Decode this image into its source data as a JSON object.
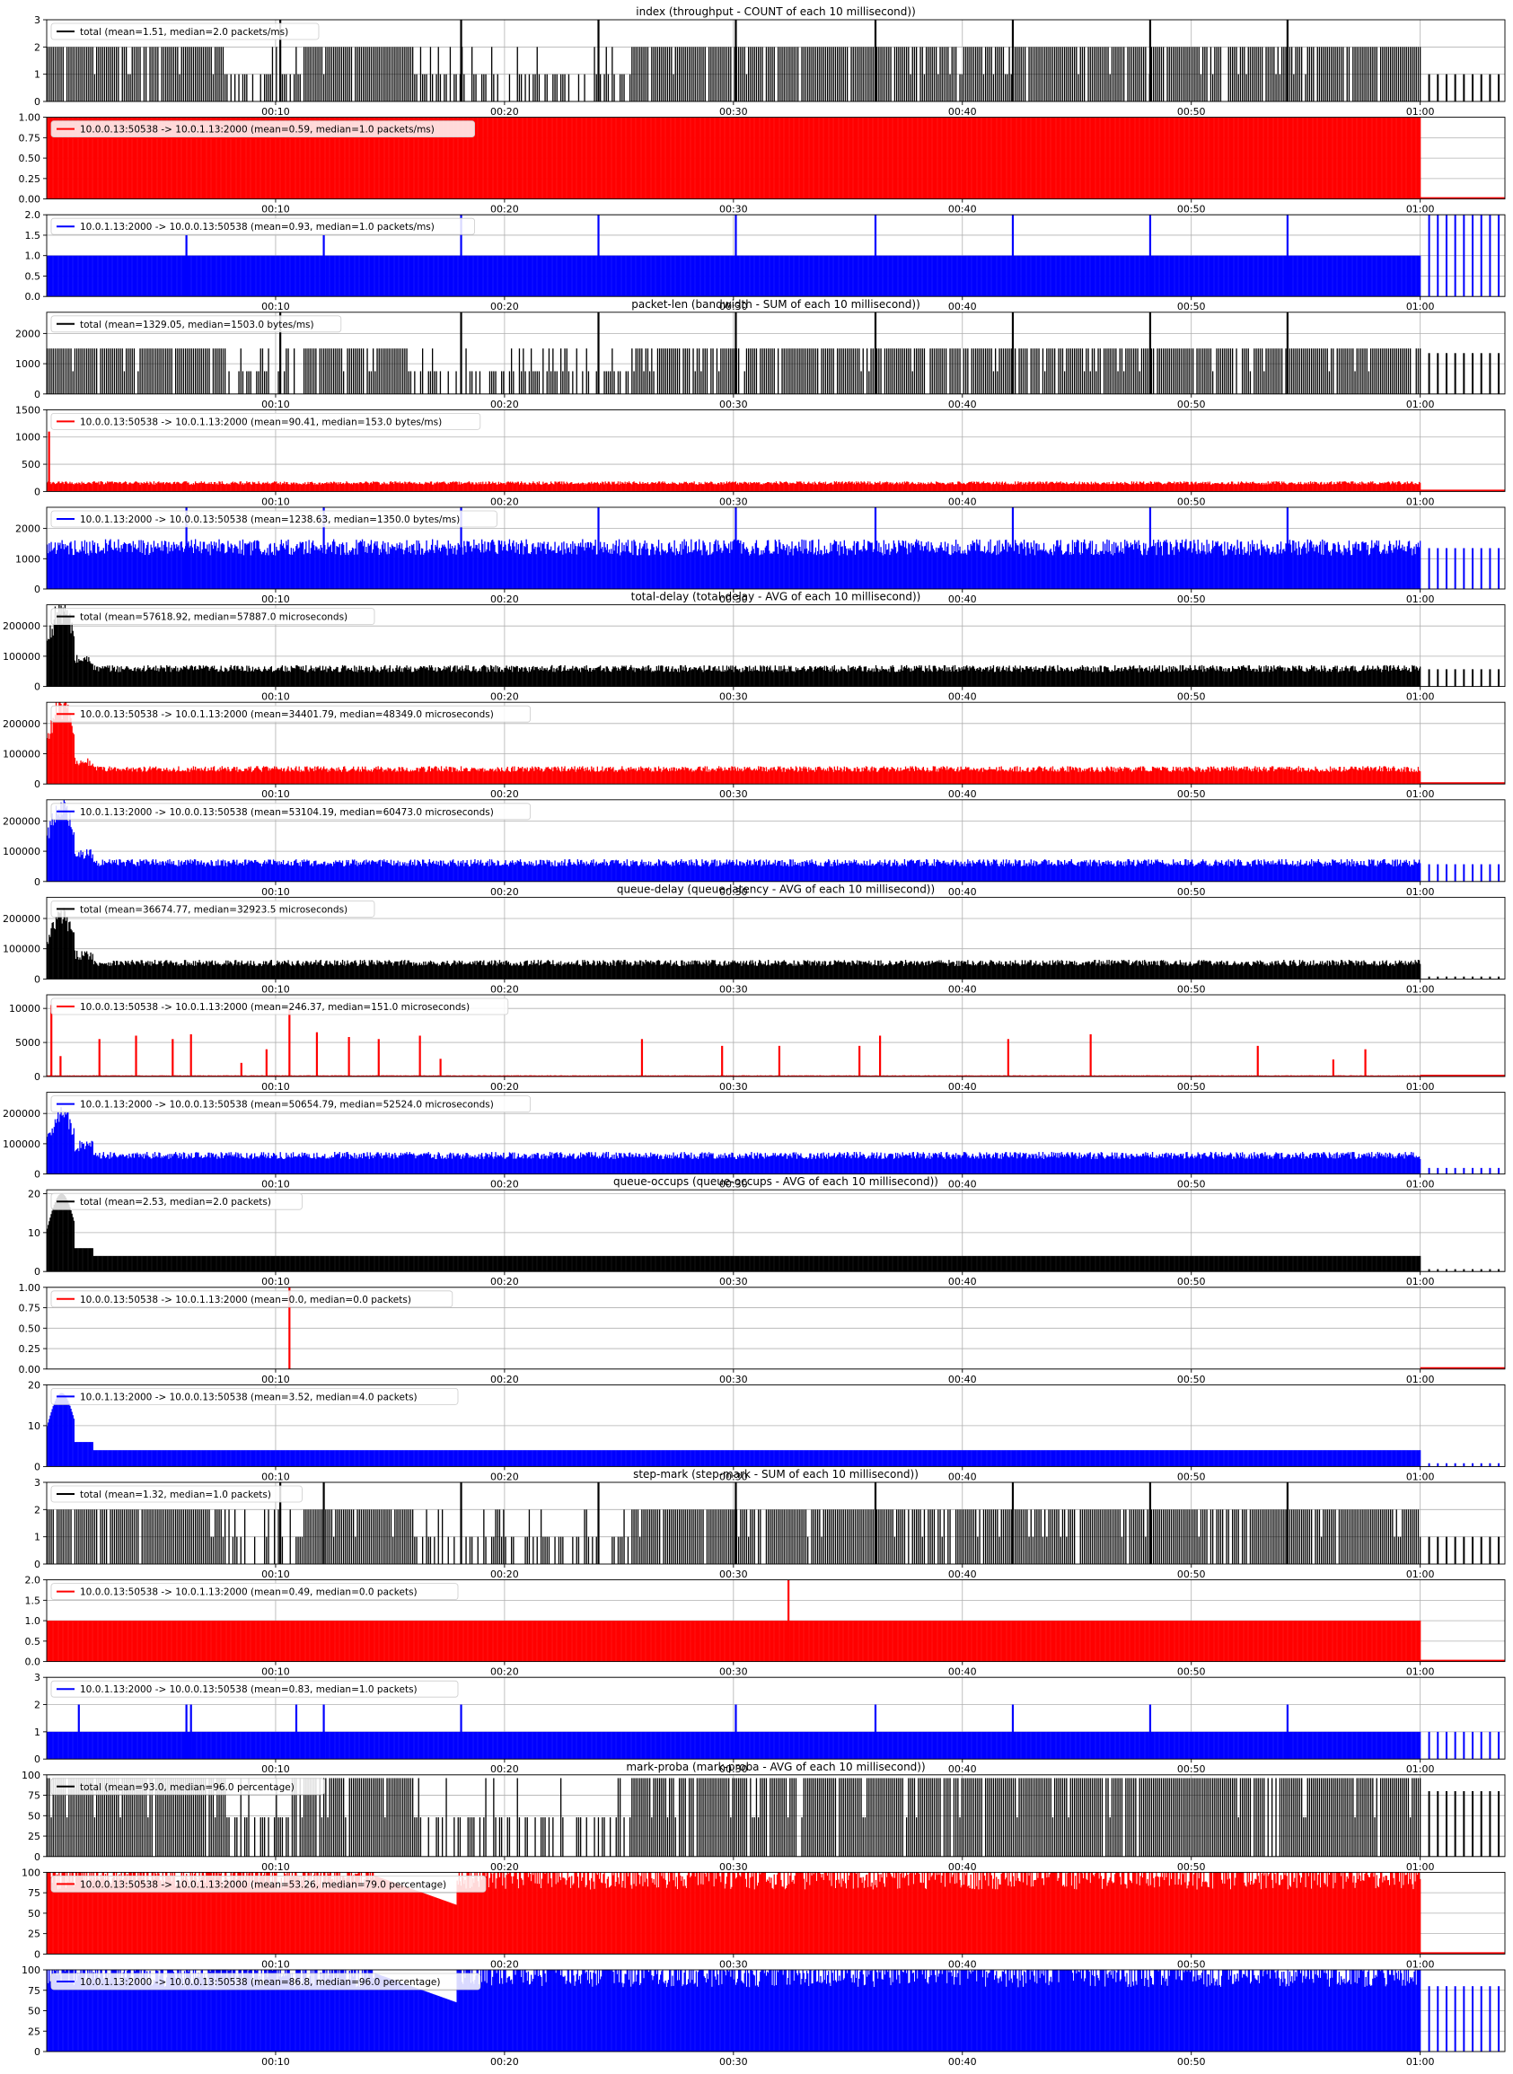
{
  "colors": {
    "total": "#000000",
    "c2s": "#ff0000",
    "s2c": "#0000ff",
    "grid": "#b0b0b0"
  },
  "chart_data": {
    "type": "bar",
    "xaxis": {
      "ticks": [
        "00:10",
        "00:20",
        "00:30",
        "00:40",
        "00:50",
        "01:00"
      ],
      "range_seconds": [
        0,
        63.7
      ]
    },
    "groups": [
      {
        "title": "index (throughput - COUNT of each 10 millisecond))",
        "panels": [
          {
            "legend": "total (mean=1.51, median=2.0 packets/ms)",
            "color": "#000000",
            "ylim": [
              0,
              3
            ],
            "yticks": [
              "0",
              "1",
              "2",
              "3"
            ],
            "typical": 2.0,
            "style": "stripes",
            "tail": 1.0,
            "spikes": [
              {
                "t": 10.2,
                "v": 3
              },
              {
                "t": 18.1,
                "v": 3
              },
              {
                "t": 24.1,
                "v": 3
              },
              {
                "t": 30.1,
                "v": 3
              },
              {
                "t": 36.2,
                "v": 3
              },
              {
                "t": 42.2,
                "v": 3
              },
              {
                "t": 48.2,
                "v": 3
              },
              {
                "t": 54.2,
                "v": 3
              }
            ]
          },
          {
            "legend": "10.0.0.13:50538 -> 10.0.1.13:2000 (mean=0.59, median=1.0 packets/ms)",
            "color": "#ff0000",
            "ylim": [
              0,
              1.0
            ],
            "yticks": [
              "0.00",
              "0.25",
              "0.50",
              "0.75",
              "1.00"
            ],
            "typical": 1.0,
            "style": "fill",
            "tail": 0,
            "spikes": []
          },
          {
            "legend": "10.0.1.13:2000 -> 10.0.0.13:50538 (mean=0.93, median=1.0 packets/ms)",
            "color": "#0000ff",
            "ylim": [
              0,
              2.0
            ],
            "yticks": [
              "0.0",
              "0.5",
              "1.0",
              "1.5",
              "2.0"
            ],
            "typical": 1.0,
            "style": "fill",
            "tail": 2.0,
            "spikes": [
              {
                "t": 6.1,
                "v": 1.5
              },
              {
                "t": 12.1,
                "v": 1.5
              },
              {
                "t": 18.1,
                "v": 2.0
              },
              {
                "t": 24.1,
                "v": 2.0
              },
              {
                "t": 30.1,
                "v": 2.0
              },
              {
                "t": 36.2,
                "v": 2.0
              },
              {
                "t": 42.2,
                "v": 2.0
              },
              {
                "t": 48.2,
                "v": 2.0
              },
              {
                "t": 54.2,
                "v": 2.0
              }
            ]
          }
        ]
      },
      {
        "title": "packet-len (bandwidth - SUM of each 10 millisecond))",
        "panels": [
          {
            "legend": "total (mean=1329.05, median=1503.0 bytes/ms)",
            "color": "#000000",
            "ylim": [
              0,
              2700
            ],
            "yticks": [
              "0",
              "1000",
              "2000"
            ],
            "typical": 1503,
            "style": "stripes",
            "tail": 1350,
            "spikes": [
              {
                "t": 10.2,
                "v": 2700
              },
              {
                "t": 18.1,
                "v": 2700
              },
              {
                "t": 24.1,
                "v": 2700
              },
              {
                "t": 30.1,
                "v": 2700
              },
              {
                "t": 36.2,
                "v": 2700
              },
              {
                "t": 42.2,
                "v": 2700
              },
              {
                "t": 48.2,
                "v": 2700
              },
              {
                "t": 54.2,
                "v": 2700
              }
            ]
          },
          {
            "legend": "10.0.0.13:50538 -> 10.0.1.13:2000 (mean=90.41, median=153.0 bytes/ms)",
            "color": "#ff0000",
            "ylim": [
              0,
              1500
            ],
            "yticks": [
              "0",
              "500",
              "1000",
              "1500"
            ],
            "typical": 153,
            "style": "fill",
            "tail": 0,
            "spikes": [
              {
                "t": 0.1,
                "v": 1100
              }
            ]
          },
          {
            "legend": "10.0.1.13:2000 -> 10.0.0.13:50538 (mean=1238.63, median=1350.0 bytes/ms)",
            "color": "#0000ff",
            "ylim": [
              0,
              2700
            ],
            "yticks": [
              "0",
              "1000",
              "2000"
            ],
            "typical": 1350,
            "style": "fill",
            "tail": 1350,
            "spikes": [
              {
                "t": 6.1,
                "v": 2700
              },
              {
                "t": 12.1,
                "v": 2700
              },
              {
                "t": 18.1,
                "v": 2700
              },
              {
                "t": 24.1,
                "v": 2700
              },
              {
                "t": 30.1,
                "v": 2700
              },
              {
                "t": 36.2,
                "v": 2700
              },
              {
                "t": 42.2,
                "v": 2700
              },
              {
                "t": 48.2,
                "v": 2700
              },
              {
                "t": 54.2,
                "v": 2700
              }
            ]
          }
        ]
      },
      {
        "title": "total-delay (total-delay - AVG of each 10 millisecond))",
        "panels": [
          {
            "legend": "total (mean=57618.92, median=57887.0 microseconds)",
            "color": "#000000",
            "ylim": [
              0,
              270000
            ],
            "yticks": [
              "0",
              "100000",
              "200000"
            ],
            "typical": 57887,
            "style": "lines",
            "tail": 57000,
            "spikes": [],
            "early": 250000
          },
          {
            "legend": "10.0.0.13:50538 -> 10.0.1.13:2000 (mean=34401.79, median=48349.0 microseconds)",
            "color": "#ff0000",
            "ylim": [
              0,
              270000
            ],
            "yticks": [
              "0",
              "100000",
              "200000"
            ],
            "typical": 48349,
            "style": "fill",
            "tail": 0,
            "spikes": [],
            "early": 250000
          },
          {
            "legend": "10.0.1.13:2000 -> 10.0.0.13:50538 (mean=53104.19, median=60473.0 microseconds)",
            "color": "#0000ff",
            "ylim": [
              0,
              270000
            ],
            "yticks": [
              "0",
              "100000",
              "200000"
            ],
            "typical": 60473,
            "style": "fill",
            "tail": 57000,
            "spikes": [],
            "early": 250000
          }
        ]
      },
      {
        "title": "queue-delay (queue-latency - AVG of each 10 millisecond))",
        "panels": [
          {
            "legend": "total (mean=36674.77, median=32923.5 microseconds)",
            "color": "#000000",
            "ylim": [
              0,
              270000
            ],
            "yticks": [
              "0",
              "100000",
              "200000"
            ],
            "typical": 52000,
            "style": "fill",
            "tail": 8000,
            "spikes": [],
            "early": 200000
          },
          {
            "legend": "10.0.0.13:50538 -> 10.0.1.13:2000 (mean=246.37, median=151.0 microseconds)",
            "color": "#ff0000",
            "ylim": [
              0,
              12000
            ],
            "yticks": [
              "0",
              "5000",
              "10000"
            ],
            "typical": 151,
            "style": "fill",
            "tail": 0,
            "spikes": [
              {
                "t": 0.2,
                "v": 10500
              },
              {
                "t": 0.6,
                "v": 3000
              },
              {
                "t": 2.3,
                "v": 5500
              },
              {
                "t": 3.9,
                "v": 6000
              },
              {
                "t": 5.5,
                "v": 5500
              },
              {
                "t": 6.3,
                "v": 6200
              },
              {
                "t": 8.5,
                "v": 2000
              },
              {
                "t": 9.6,
                "v": 4000
              },
              {
                "t": 10.6,
                "v": 10000
              },
              {
                "t": 11.8,
                "v": 6500
              },
              {
                "t": 13.2,
                "v": 5800
              },
              {
                "t": 14.5,
                "v": 5500
              },
              {
                "t": 16.3,
                "v": 6000
              },
              {
                "t": 17.2,
                "v": 2600
              },
              {
                "t": 26.0,
                "v": 5500
              },
              {
                "t": 29.5,
                "v": 4500
              },
              {
                "t": 32.0,
                "v": 4500
              },
              {
                "t": 35.5,
                "v": 4500
              },
              {
                "t": 36.4,
                "v": 6000
              },
              {
                "t": 42.0,
                "v": 5500
              },
              {
                "t": 45.6,
                "v": 6200
              },
              {
                "t": 52.9,
                "v": 4500
              },
              {
                "t": 56.2,
                "v": 2500
              },
              {
                "t": 57.6,
                "v": 4000
              }
            ]
          },
          {
            "legend": "10.0.1.13:2000 -> 10.0.0.13:50538 (mean=50654.79, median=52524.0 microseconds)",
            "color": "#0000ff",
            "ylim": [
              0,
              270000
            ],
            "yticks": [
              "0",
              "100000",
              "200000"
            ],
            "typical": 60000,
            "style": "fill",
            "tail": 20000,
            "spikes": [],
            "early": 200000
          }
        ]
      },
      {
        "title": "queue-occups (queue-occups - AVG of each 10 millisecond))",
        "panels": [
          {
            "legend": "total (mean=2.53, median=2.0 packets)",
            "color": "#000000",
            "ylim": [
              0,
              21
            ],
            "yticks": [
              "0",
              "10",
              "20"
            ],
            "typical": 4,
            "style": "fill",
            "tail": 0.6,
            "spikes": [],
            "early": 20
          },
          {
            "legend": "10.0.0.13:50538 -> 10.0.1.13:2000 (mean=0.0, median=0.0 packets)",
            "color": "#ff0000",
            "ylim": [
              0,
              1.0
            ],
            "yticks": [
              "0.00",
              "0.25",
              "0.50",
              "0.75",
              "1.00"
            ],
            "typical": 0,
            "style": "fill",
            "tail": 0,
            "spikes": [
              {
                "t": 10.6,
                "v": 1.0
              }
            ]
          },
          {
            "legend": "10.0.1.13:2000 -> 10.0.0.13:50538 (mean=3.52, median=4.0 packets)",
            "color": "#0000ff",
            "ylim": [
              0,
              20
            ],
            "yticks": [
              "0",
              "10",
              "20"
            ],
            "typical": 4,
            "style": "fill",
            "tail": 0.8,
            "spikes": [],
            "early": 18
          }
        ]
      },
      {
        "title": "step-mark (step-mark - SUM of each 10 millisecond))",
        "panels": [
          {
            "legend": "total (mean=1.32, median=1.0 packets)",
            "color": "#000000",
            "ylim": [
              0,
              3
            ],
            "yticks": [
              "0",
              "1",
              "2",
              "3"
            ],
            "typical": 2.0,
            "style": "stripes",
            "tail": 1.0,
            "spikes": [
              {
                "t": 10.2,
                "v": 3
              },
              {
                "t": 12.1,
                "v": 3
              },
              {
                "t": 18.1,
                "v": 3
              },
              {
                "t": 24.1,
                "v": 3
              },
              {
                "t": 30.1,
                "v": 3
              },
              {
                "t": 36.2,
                "v": 3
              },
              {
                "t": 42.2,
                "v": 3
              },
              {
                "t": 48.2,
                "v": 3
              },
              {
                "t": 54.2,
                "v": 3
              }
            ]
          },
          {
            "legend": "10.0.0.13:50538 -> 10.0.1.13:2000 (mean=0.49, median=0.0 packets)",
            "color": "#ff0000",
            "ylim": [
              0,
              2.0
            ],
            "yticks": [
              "0.0",
              "0.5",
              "1.0",
              "1.5",
              "2.0"
            ],
            "typical": 1.0,
            "style": "fill",
            "tail": 0,
            "spikes": [
              {
                "t": 32.4,
                "v": 2.0
              }
            ]
          },
          {
            "legend": "10.0.1.13:2000 -> 10.0.0.13:50538 (mean=0.83, median=1.0 packets)",
            "color": "#0000ff",
            "ylim": [
              0,
              3
            ],
            "yticks": [
              "0",
              "1",
              "2",
              "3"
            ],
            "typical": 1.0,
            "style": "fill",
            "tail": 1.0,
            "spikes": [
              {
                "t": 1.4,
                "v": 2
              },
              {
                "t": 6.1,
                "v": 2
              },
              {
                "t": 6.3,
                "v": 2
              },
              {
                "t": 10.9,
                "v": 2
              },
              {
                "t": 12.1,
                "v": 2
              },
              {
                "t": 18.1,
                "v": 2
              },
              {
                "t": 30.1,
                "v": 2
              },
              {
                "t": 36.2,
                "v": 2
              },
              {
                "t": 42.2,
                "v": 2
              },
              {
                "t": 48.2,
                "v": 2
              },
              {
                "t": 54.2,
                "v": 2
              }
            ]
          }
        ]
      },
      {
        "title": "mark-proba (mark-proba - AVG of each 10 millisecond))",
        "panels": [
          {
            "legend": "total (mean=93.0, median=96.0 percentage)",
            "color": "#000000",
            "ylim": [
              0,
              100
            ],
            "yticks": [
              "0",
              "25",
              "50",
              "75",
              "100"
            ],
            "typical": 96,
            "style": "stripes",
            "tail": 80,
            "spikes": []
          },
          {
            "legend": "10.0.0.13:50538 -> 10.0.1.13:2000 (mean=53.26, median=79.0 percentage)",
            "color": "#ff0000",
            "ylim": [
              0,
              100
            ],
            "yticks": [
              "0",
              "25",
              "50",
              "75",
              "100"
            ],
            "typical": 96,
            "style": "fill",
            "tail": 0,
            "spikes": [],
            "dip": [
              14.3,
              17.9,
              60
            ]
          },
          {
            "legend": "10.0.1.13:2000 -> 10.0.0.13:50538 (mean=86.8, median=96.0 percentage)",
            "color": "#0000ff",
            "ylim": [
              0,
              100
            ],
            "yticks": [
              "0",
              "25",
              "50",
              "75",
              "100"
            ],
            "typical": 96,
            "style": "fill",
            "tail": 80,
            "spikes": [],
            "dip": [
              14.3,
              17.9,
              60
            ]
          }
        ]
      }
    ]
  }
}
